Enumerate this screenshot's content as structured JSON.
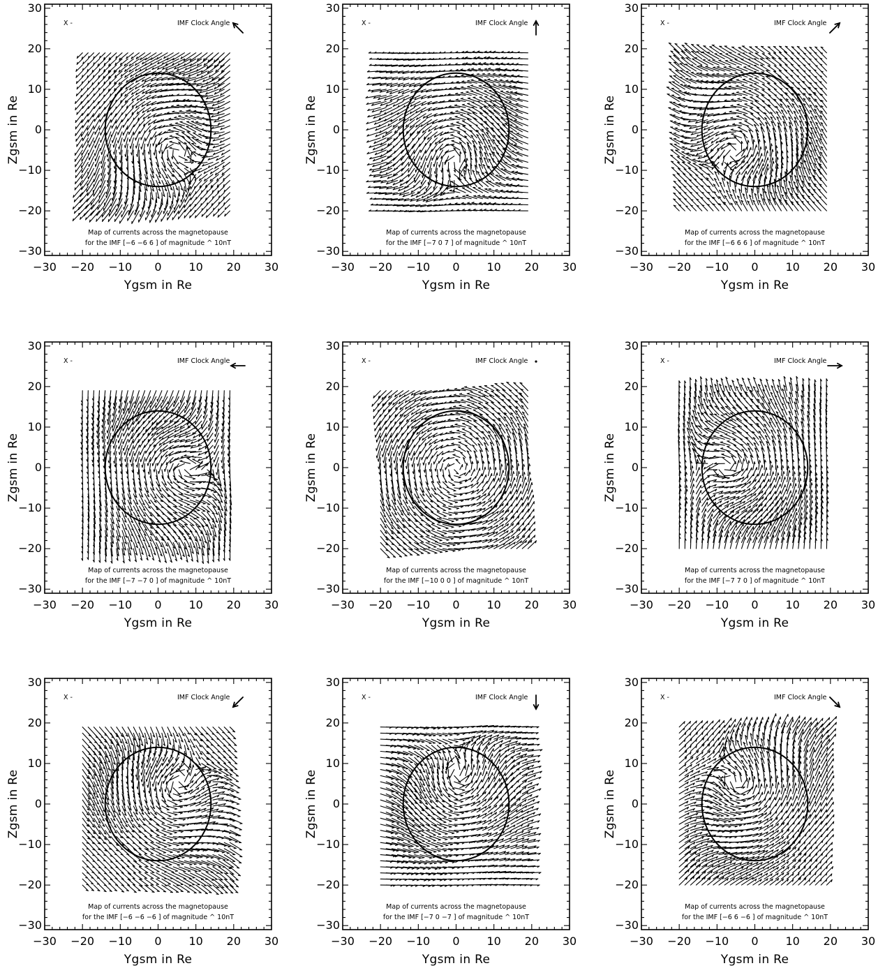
{
  "chart_data": {
    "type": "quiver",
    "xlabel": "Ygsm in Re",
    "ylabel": "Zgsm in Re",
    "xlim": [
      -30,
      30
    ],
    "ylim": [
      -31,
      31
    ],
    "xticks": [
      -30,
      -20,
      -10,
      0,
      10,
      20,
      30
    ],
    "yticks": [
      30,
      20,
      10,
      0,
      -10,
      -20,
      -30
    ],
    "panels": [
      {
        "top_left_label": "X  -",
        "clock_label": "IMF Clock Angle",
        "clock_angle_deg": 135,
        "caption_line1": "Map of currents across the magnetopause",
        "caption_line2": "for the IMF [−6     −6       6  ]  of magnitude ^ 10nT",
        "imf": [
          -6,
          -6,
          6
        ],
        "magnitude": "10nT"
      },
      {
        "top_left_label": "X  -",
        "clock_label": "IMF Clock Angle",
        "clock_angle_deg": 90,
        "caption_line1": "Map of currents across the magnetopause",
        "caption_line2": "for the IMF [−7      0       7  ]  of magnitude ^ 10nT",
        "imf": [
          -7,
          0,
          7
        ],
        "magnitude": "10nT"
      },
      {
        "top_left_label": "X  -",
        "clock_label": "IMF Clock Angle",
        "clock_angle_deg": 45,
        "caption_line1": "Map of currents across the magnetopause",
        "caption_line2": "for the IMF [−6       6       6  ]  of magnitude ^ 10nT",
        "imf": [
          -6,
          6,
          6
        ],
        "magnitude": "10nT"
      },
      {
        "top_left_label": "X  -",
        "clock_label": "IMF Clock Angle",
        "clock_angle_deg": 180,
        "caption_line1": "Map of currents across the magnetopause",
        "caption_line2": "for the IMF [−7     −7       0  ]  of magnitude ^ 10nT",
        "imf": [
          -7,
          -7,
          0
        ],
        "magnitude": "10nT"
      },
      {
        "top_left_label": "X  -",
        "clock_label": "IMF Clock Angle",
        "clock_angle_deg": null,
        "caption_line1": "Map of currents across the magnetopause",
        "caption_line2": "for the IMF [−10      0       0  ]  of magnitude ^ 10nT",
        "imf": [
          -10,
          0,
          0
        ],
        "magnitude": "10nT"
      },
      {
        "top_left_label": "X  -",
        "clock_label": "IMF Clock Angle",
        "clock_angle_deg": 0,
        "caption_line1": "Map of currents across the magnetopause",
        "caption_line2": "for the IMF [−7       7       0  ]  of magnitude ^ 10nT",
        "imf": [
          -7,
          7,
          0
        ],
        "magnitude": "10nT"
      },
      {
        "top_left_label": "X  -",
        "clock_label": "IMF Clock Angle",
        "clock_angle_deg": 225,
        "caption_line1": "Map of currents across the magnetopause",
        "caption_line2": "for the IMF [−6     −6      −6  ]  of magnitude ^ 10nT",
        "imf": [
          -6,
          -6,
          -6
        ],
        "magnitude": "10nT"
      },
      {
        "top_left_label": "X  -",
        "clock_label": "IMF Clock Angle",
        "clock_angle_deg": 270,
        "caption_line1": "Map of currents across the magnetopause",
        "caption_line2": "for the IMF [−7      0      −7  ]  of magnitude ^ 10nT",
        "imf": [
          -7,
          0,
          -7
        ],
        "magnitude": "10nT"
      },
      {
        "top_left_label": "X  -",
        "clock_label": "IMF Clock Angle",
        "clock_angle_deg": 315,
        "caption_line1": "Map of currents across the magnetopause",
        "caption_line2": "for the IMF [−6       6      −6  ]  of magnitude ^ 10nT",
        "imf": [
          -6,
          6,
          -6
        ],
        "magnitude": "10nT"
      }
    ],
    "magnetopause_circle": {
      "center": [
        0,
        0
      ],
      "radius": 14
    },
    "vector_grid": {
      "y_range": [
        -20,
        20
      ],
      "z_range": [
        -20,
        20
      ],
      "step": 1.5
    }
  }
}
